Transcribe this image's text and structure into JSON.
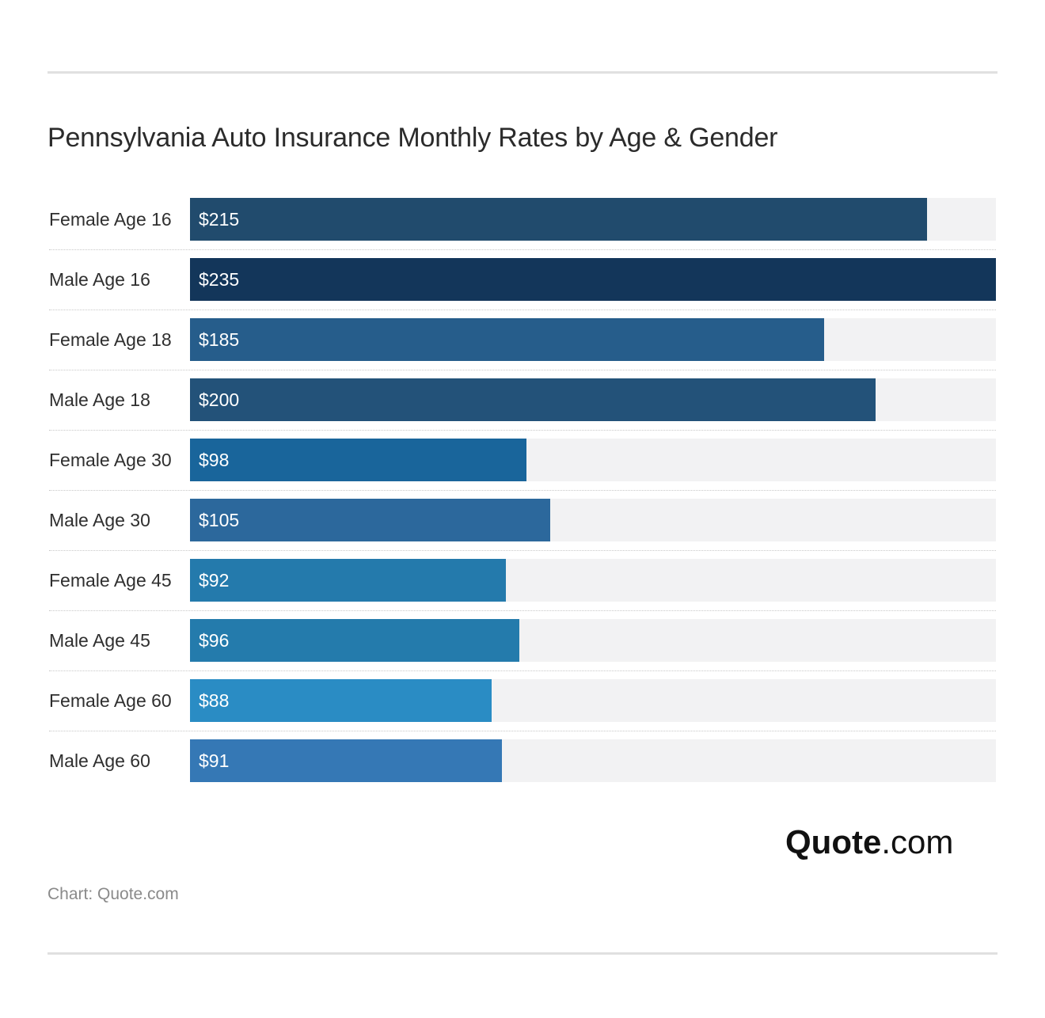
{
  "title": "Pennsylvania Auto Insurance Monthly Rates by Age & Gender",
  "source": "Chart: Quote.com",
  "logo": {
    "bold": "Quote",
    "rest": ".com"
  },
  "chart_data": {
    "type": "bar",
    "orientation": "horizontal",
    "categories": [
      "Female Age 16",
      "Male Age 16",
      "Female Age 18",
      "Male Age 18",
      "Female Age 30",
      "Male Age 30",
      "Female Age 45",
      "Male Age 45",
      "Female Age 60",
      "Male Age 60"
    ],
    "values": [
      215,
      235,
      185,
      200,
      98,
      105,
      92,
      96,
      88,
      91
    ],
    "value_labels": [
      "$215",
      "$235",
      "$185",
      "$200",
      "$98",
      "$105",
      "$92",
      "$96",
      "$88",
      "$91"
    ],
    "bar_colors": [
      "#214b6d",
      "#13365a",
      "#265d8b",
      "#235279",
      "#19659b",
      "#2c689c",
      "#247aac",
      "#247bac",
      "#2a8cc4",
      "#3578b5"
    ],
    "xlim": [
      0,
      235
    ],
    "title": "Pennsylvania Auto Insurance Monthly Rates by Age & Gender",
    "xlabel": "",
    "ylabel": ""
  }
}
